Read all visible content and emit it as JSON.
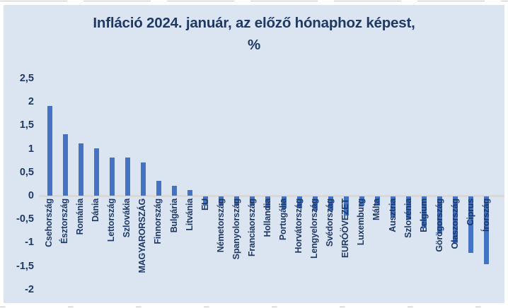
{
  "page": {
    "background": "#ffffff",
    "panel_background": "#dbe5f1"
  },
  "title": {
    "line1": "Infláció 2024. január, az előző hónaphoz képest,",
    "line2": "%",
    "color": "#1f3864"
  },
  "chart_data": {
    "type": "bar",
    "title": "Infláció 2024. január, az előző hónaphoz képest, %",
    "categories": [
      "Csehország",
      "Észtország",
      "Románia",
      "Dánia",
      "Lettország",
      "Szlovákia",
      "MAGYARORSZÁG",
      "Finnország",
      "Bulgária",
      "Litvánia",
      "EU",
      "Németország",
      "Spanyolország",
      "Franciaország",
      "Hollandia",
      "Portugália",
      "Horvátország",
      "Lengyelország",
      "Svédország",
      "EURÓÖVEZET",
      "Luxemburg",
      "Málta",
      "Ausztria",
      "Szlovénia",
      "Belgium",
      "Görögország",
      "Olaszország",
      "Ciprus",
      "Írország"
    ],
    "values": [
      1.9,
      1.3,
      1.1,
      1.0,
      0.8,
      0.8,
      0.7,
      0.3,
      0.2,
      0.1,
      -0.2,
      -0.2,
      -0.2,
      -0.2,
      -0.25,
      -0.25,
      -0.25,
      -0.3,
      -0.3,
      -0.4,
      -0.2,
      -0.2,
      -0.45,
      -0.5,
      -0.65,
      -0.8,
      -1.0,
      -1.2,
      -1.45
    ],
    "unit": "%",
    "ylim": [
      -2,
      2.5
    ],
    "ytick_labels": [
      "2,5",
      "2",
      "1,5",
      "1",
      "0,5",
      "0",
      "-0,5",
      "-1",
      "-1,5",
      "-2"
    ],
    "ytick_values": [
      2.5,
      2,
      1.5,
      1,
      0.5,
      0,
      -0.5,
      -1,
      -1.5,
      -2
    ],
    "grid": false,
    "legend": false,
    "decimal_separator": ",",
    "bar_color": "#4472c4",
    "axis_line_color": "#d9d9d9",
    "label_color": "#1f3864",
    "highlighted_category": "MAGYARORSZÁG"
  }
}
